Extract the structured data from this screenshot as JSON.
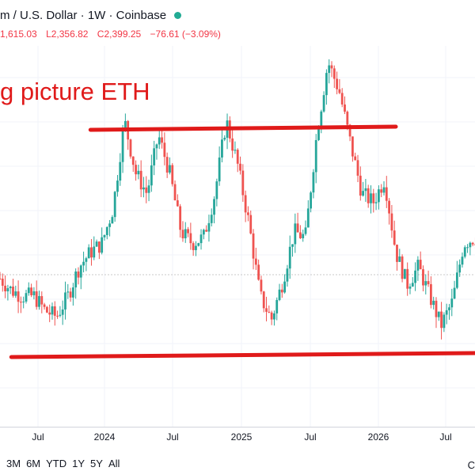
{
  "header": {
    "symbol_title": "m / U.S. Dollar · 1W · Coinbase",
    "status_color": "#22ab94",
    "ohlc": {
      "open": "1,615.03",
      "low": "L2,356.82",
      "close": "C2,399.25",
      "change": "−76.61 (−3.09%)"
    }
  },
  "annotation": {
    "text": "g picture ETH",
    "color": "#e01a1a"
  },
  "time_axis": {
    "labels": [
      "Jul",
      "2024",
      "Jul",
      "2025",
      "Jul",
      "2026",
      "Jul"
    ]
  },
  "range_buttons": [
    "3M",
    "6M",
    "YTD",
    "1Y",
    "5Y",
    "All"
  ],
  "corner_label": "C",
  "chart_data": {
    "type": "candlestick",
    "up_color": "#26a69a",
    "down_color": "#ef5350",
    "annotation_line_color": "#e01a1a",
    "x_range": [
      "2023-04",
      "2026-10"
    ],
    "trend_lines": [
      {
        "name": "resistance",
        "from": "2023-12",
        "to": "2026-03"
      },
      {
        "name": "support",
        "from": "2023-05",
        "to": "2026-10"
      }
    ],
    "price_path": [
      [
        "2023-04",
        0.26
      ],
      [
        "2023-05",
        0.22
      ],
      [
        "2023-06",
        0.2
      ],
      [
        "2023-07",
        0.2
      ],
      [
        "2023-08",
        0.15
      ],
      [
        "2023-09",
        0.13
      ],
      [
        "2023-10",
        0.2
      ],
      [
        "2023-11",
        0.3
      ],
      [
        "2023-12",
        0.35
      ],
      [
        "2024-01",
        0.38
      ],
      [
        "2024-02",
        0.5
      ],
      [
        "2024-03",
        0.8
      ],
      [
        "2024-04",
        0.62
      ],
      [
        "2024-05",
        0.55
      ],
      [
        "2024-06",
        0.75
      ],
      [
        "2024-07",
        0.62
      ],
      [
        "2024-08",
        0.42
      ],
      [
        "2024-09",
        0.38
      ],
      [
        "2024-10",
        0.4
      ],
      [
        "2024-11",
        0.55
      ],
      [
        "2024-12",
        0.8
      ],
      [
        "2025-01",
        0.65
      ],
      [
        "2025-02",
        0.45
      ],
      [
        "2025-03",
        0.2
      ],
      [
        "2025-04",
        0.12
      ],
      [
        "2025-05",
        0.25
      ],
      [
        "2025-06",
        0.42
      ],
      [
        "2025-07",
        0.4
      ],
      [
        "2025-08",
        0.75
      ],
      [
        "2025-09",
        1.0
      ],
      [
        "2025-10",
        0.9
      ],
      [
        "2025-11",
        0.72
      ],
      [
        "2025-12",
        0.55
      ],
      [
        "2026-01",
        0.52
      ],
      [
        "2026-02",
        0.6
      ],
      [
        "2026-03",
        0.35
      ],
      [
        "2026-04",
        0.24
      ],
      [
        "2026-05",
        0.3
      ],
      [
        "2026-06",
        0.2
      ],
      [
        "2026-07",
        0.1
      ],
      [
        "2026-08",
        0.18
      ],
      [
        "2026-09",
        0.38
      ],
      [
        "2026-10",
        0.4
      ]
    ]
  }
}
